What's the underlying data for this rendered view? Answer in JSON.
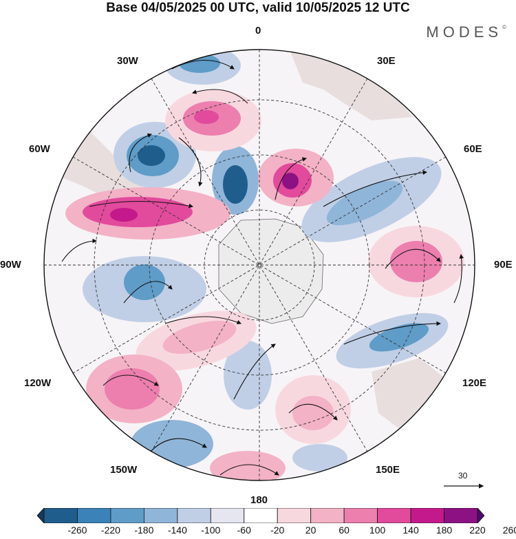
{
  "title": "Base 04/05/2025 00 UTC, valid 10/05/2025 12 UTC",
  "brand": "MODES",
  "brand_mark": "©",
  "lon_labels": {
    "n0": "0",
    "n30e": "30E",
    "n60e": "60E",
    "n90e": "90E",
    "n120e": "120E",
    "n150e": "150E",
    "n180": "180",
    "n150w": "150W",
    "n120w": "120W",
    "n90w": "90W",
    "n60w": "60W",
    "n30w": "30W"
  },
  "reference_vector": "30",
  "colorbar": {
    "labels": [
      "-260",
      "-220",
      "-180",
      "-140",
      "-100",
      "-60",
      "-20",
      "20",
      "60",
      "100",
      "140",
      "180",
      "220",
      "260"
    ],
    "colors": [
      "#163a5c",
      "#1f5d8c",
      "#3a82b7",
      "#5f9cc8",
      "#8fb5d9",
      "#c0cfe6",
      "#e6e6f1",
      "#ffffff",
      "#f8d8df",
      "#f3b2c6",
      "#ec7fae",
      "#e24a9c",
      "#c4198a",
      "#8c1183",
      "#4e0a6b"
    ]
  },
  "map_colors": {
    "land": "#e8e4e4",
    "antarctica": "#ececec"
  }
}
